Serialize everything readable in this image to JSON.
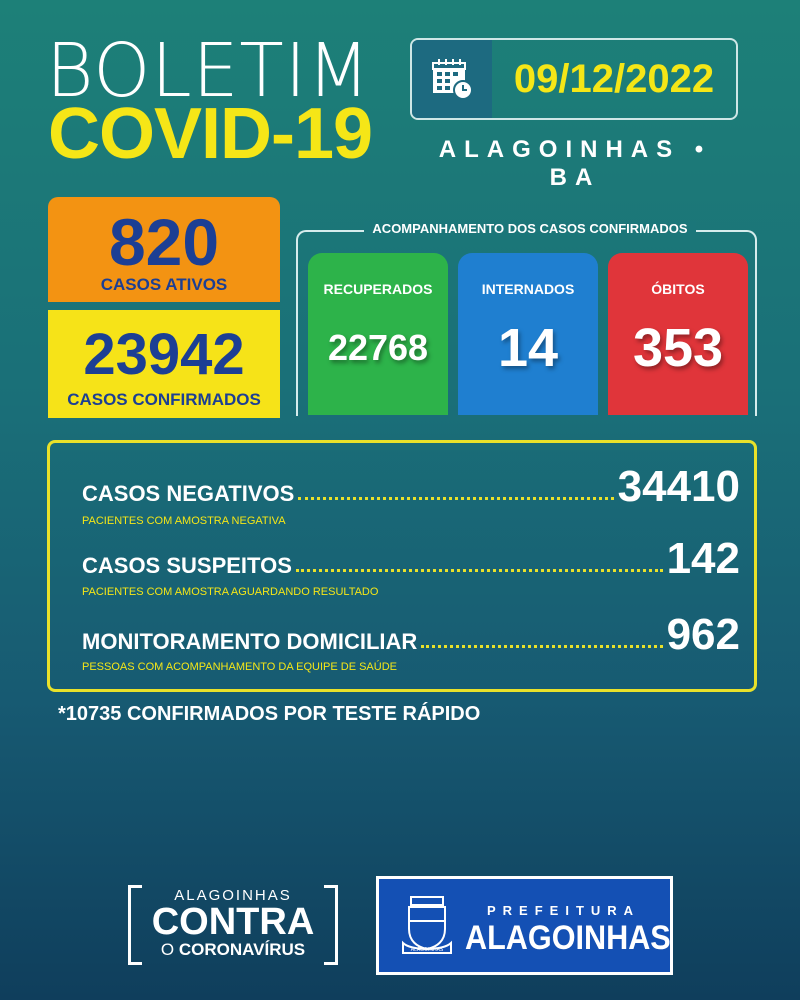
{
  "header": {
    "title_line1": "BOLETIM",
    "title_line2": "COVID-19",
    "date": "09/12/2022",
    "location": "ALAGOINHAS • BA",
    "date_icon": "calendar-clock-icon"
  },
  "summary": {
    "active": {
      "value": "820",
      "label": "CASOS ATIVOS"
    },
    "confirmed": {
      "value": "23942",
      "label": "CASOS CONFIRMADOS"
    }
  },
  "tracking": {
    "title": "ACOMPANHAMENTO DOS CASOS CONFIRMADOS",
    "cards": [
      {
        "label": "RECUPERADOS",
        "value": "22768",
        "color": "#2db34a"
      },
      {
        "label": "INTERNADOS",
        "value": "14",
        "color": "#1f7fd0"
      },
      {
        "label": "ÓBITOS",
        "value": "353",
        "color": "#e0353a"
      }
    ]
  },
  "details": [
    {
      "label": "CASOS NEGATIVOS",
      "value": "34410",
      "note": "PACIENTES COM AMOSTRA NEGATIVA"
    },
    {
      "label": "CASOS SUSPEITOS",
      "value": "142",
      "note": "PACIENTES COM AMOSTRA AGUARDANDO RESULTADO"
    },
    {
      "label": "MONITORAMENTO DOMICILIAR",
      "value": "962",
      "note": "PESSOAS COM ACOMPANHAMENTO DA EQUIPE DE SAÚDE"
    }
  ],
  "footnote": "*10735 CONFIRMADOS POR TESTE RÁPIDO",
  "logos": {
    "campaign": {
      "top": "ALAGOINHAS",
      "middle": "CONTRA",
      "bottom_o": "O",
      "bottom": "CORONAVÍRUS"
    },
    "city_hall": {
      "top": "PREFEITURA",
      "name": "ALAGOINHAS",
      "crest_text": "ALAGOINHAS"
    }
  }
}
